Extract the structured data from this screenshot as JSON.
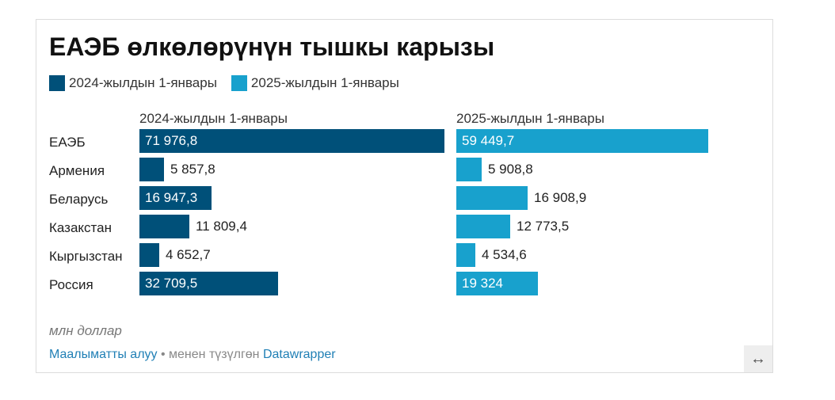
{
  "title": "ЕАЭБ өлкөлөрүнүн тышкы карызы",
  "legend": [
    {
      "label": "2024-жылдын 1-январы",
      "color": "#005079"
    },
    {
      "label": "2025-жылдын 1-январы",
      "color": "#18a1cd"
    }
  ],
  "note": "млн доллар",
  "footer": {
    "source_link": "Маалыматты алуу",
    "separator": " • ",
    "made_with": "менен түзүлгөн ",
    "tool_link": "Datawrapper"
  },
  "resize_icon": "↔",
  "chart_data": {
    "type": "bar",
    "orientation": "horizontal",
    "title": "ЕАЭБ өлкөлөрүнүн тышкы карызы",
    "unit": "млн доллар",
    "categories": [
      "ЕАЭБ",
      "Армения",
      "Беларусь",
      "Казакстан",
      "Кыргызстан",
      "Россия"
    ],
    "xlim": [
      0,
      71976.8
    ],
    "series": [
      {
        "name": "2024-жылдын 1-январы",
        "color": "#005079",
        "values": [
          71976.8,
          5857.8,
          16947.3,
          11809.4,
          4652.7,
          32709.5
        ],
        "labels": [
          "71 976,8",
          "5 857,8",
          "16 947,3",
          "11 809,4",
          "4 652,7",
          "32 709,5"
        ]
      },
      {
        "name": "2025-жылдын 1-январы",
        "color": "#18a1cd",
        "values": [
          59449.7,
          5908.8,
          16908.9,
          12773.5,
          4534.6,
          19324
        ],
        "labels": [
          "59 449,7",
          "5 908,8",
          "16 908,9",
          "12 773,5",
          "4 534,6",
          "19 324"
        ]
      }
    ]
  }
}
